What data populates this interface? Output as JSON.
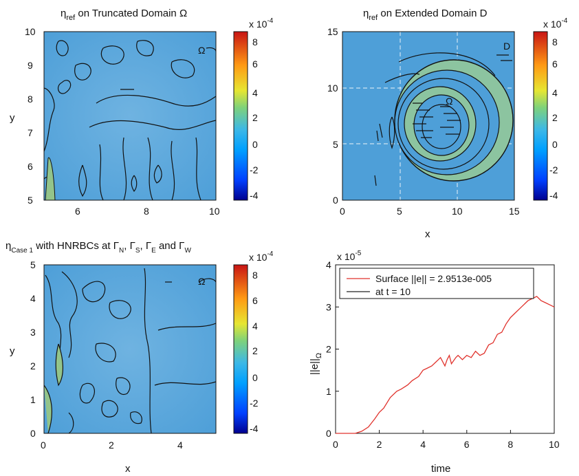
{
  "chart_data": [
    {
      "type": "heatmap",
      "title": {
        "eta": "η",
        "sub": "ref",
        "rest": " on Truncated Domain  Ω"
      },
      "xlabel": "",
      "ylabel": "y",
      "xlim": [
        5,
        10
      ],
      "ylim": [
        5,
        10
      ],
      "xticks": [
        "6",
        "8",
        "10"
      ],
      "yticks": [
        "5",
        "6",
        "7",
        "8",
        "9",
        "10"
      ],
      "region_label": "Ω",
      "colorbar": {
        "exponent": "x 10",
        "power": "-4",
        "ticks": [
          "8",
          "6",
          "4",
          "2",
          "0",
          "-2",
          "-4"
        ]
      }
    },
    {
      "type": "heatmap",
      "title": {
        "eta": "η",
        "sub": "ref",
        "rest": " on Extended Domain D"
      },
      "xlabel": "x",
      "ylabel": "",
      "xlim": [
        0,
        15
      ],
      "ylim": [
        0,
        15
      ],
      "xticks": [
        "0",
        "5",
        "10",
        "15"
      ],
      "yticks": [
        "0",
        "5",
        "10",
        "15"
      ],
      "region_labels": [
        "D",
        "Ω"
      ],
      "colorbar": {
        "exponent": "x 10",
        "power": "-4",
        "ticks": [
          "8",
          "6",
          "4",
          "2",
          "0",
          "-2",
          "-4"
        ]
      }
    },
    {
      "type": "heatmap",
      "title": {
        "eta": "η",
        "sub": "Case 1",
        "rest": " with HNRBCs at ",
        "g1": "Γ",
        "s1": "N",
        "c1": ", ",
        "g2": "Γ",
        "s2": "S",
        "c2": ", ",
        "g3": "Γ",
        "s3": "E",
        "c3": " and ",
        "g4": "Γ",
        "s4": "W"
      },
      "xlabel": "x",
      "ylabel": "y",
      "xlim": [
        0,
        5
      ],
      "ylim": [
        0,
        5
      ],
      "xticks": [
        "0",
        "2",
        "4"
      ],
      "yticks": [
        "0",
        "1",
        "2",
        "3",
        "4",
        "5"
      ],
      "region_label": "Ω",
      "colorbar": {
        "exponent": "x 10",
        "power": "-4",
        "ticks": [
          "8",
          "6",
          "4",
          "2",
          "0",
          "-2",
          "-4"
        ]
      }
    },
    {
      "type": "line",
      "xlabel": "time",
      "ylabel": {
        "main": "||e||",
        "sub": "Ω"
      },
      "xlim": [
        0,
        10
      ],
      "ylim": [
        0,
        4
      ],
      "exponent": {
        "base": "x 10",
        "power": "-5"
      },
      "xticks": [
        "0",
        "2",
        "4",
        "6",
        "8",
        "10"
      ],
      "yticks": [
        "0",
        "1",
        "2",
        "3",
        "4"
      ],
      "grid": false,
      "legend_position": "top-left",
      "series": [
        {
          "name": "Surface ||e|| = 2.9513e-005",
          "color": "#e0322c",
          "x": [
            0,
            0.9,
            1.2,
            1.5,
            1.8,
            2.0,
            2.2,
            2.5,
            2.8,
            3.0,
            3.3,
            3.5,
            3.8,
            4.0,
            4.2,
            4.4,
            4.6,
            4.8,
            5.0,
            5.1,
            5.2,
            5.3,
            5.5,
            5.6,
            5.8,
            6.0,
            6.2,
            6.4,
            6.6,
            6.8,
            7.0,
            7.2,
            7.4,
            7.6,
            7.8,
            8.0,
            8.2,
            8.4,
            8.6,
            8.8,
            9.0,
            9.2,
            9.4,
            9.6,
            9.8,
            10.0
          ],
          "y": [
            0,
            0,
            0.05,
            0.15,
            0.35,
            0.5,
            0.6,
            0.85,
            1.0,
            1.05,
            1.15,
            1.25,
            1.35,
            1.5,
            1.55,
            1.6,
            1.7,
            1.8,
            1.6,
            1.75,
            1.85,
            1.65,
            1.8,
            1.85,
            1.75,
            1.85,
            1.8,
            1.95,
            1.85,
            1.9,
            2.1,
            2.15,
            2.35,
            2.4,
            2.6,
            2.75,
            2.85,
            2.95,
            3.05,
            3.15,
            3.2,
            3.25,
            3.15,
            3.1,
            3.05,
            3.0
          ]
        },
        {
          "name": "at t = 10",
          "color": "#222222",
          "x": [],
          "y": []
        }
      ]
    }
  ]
}
